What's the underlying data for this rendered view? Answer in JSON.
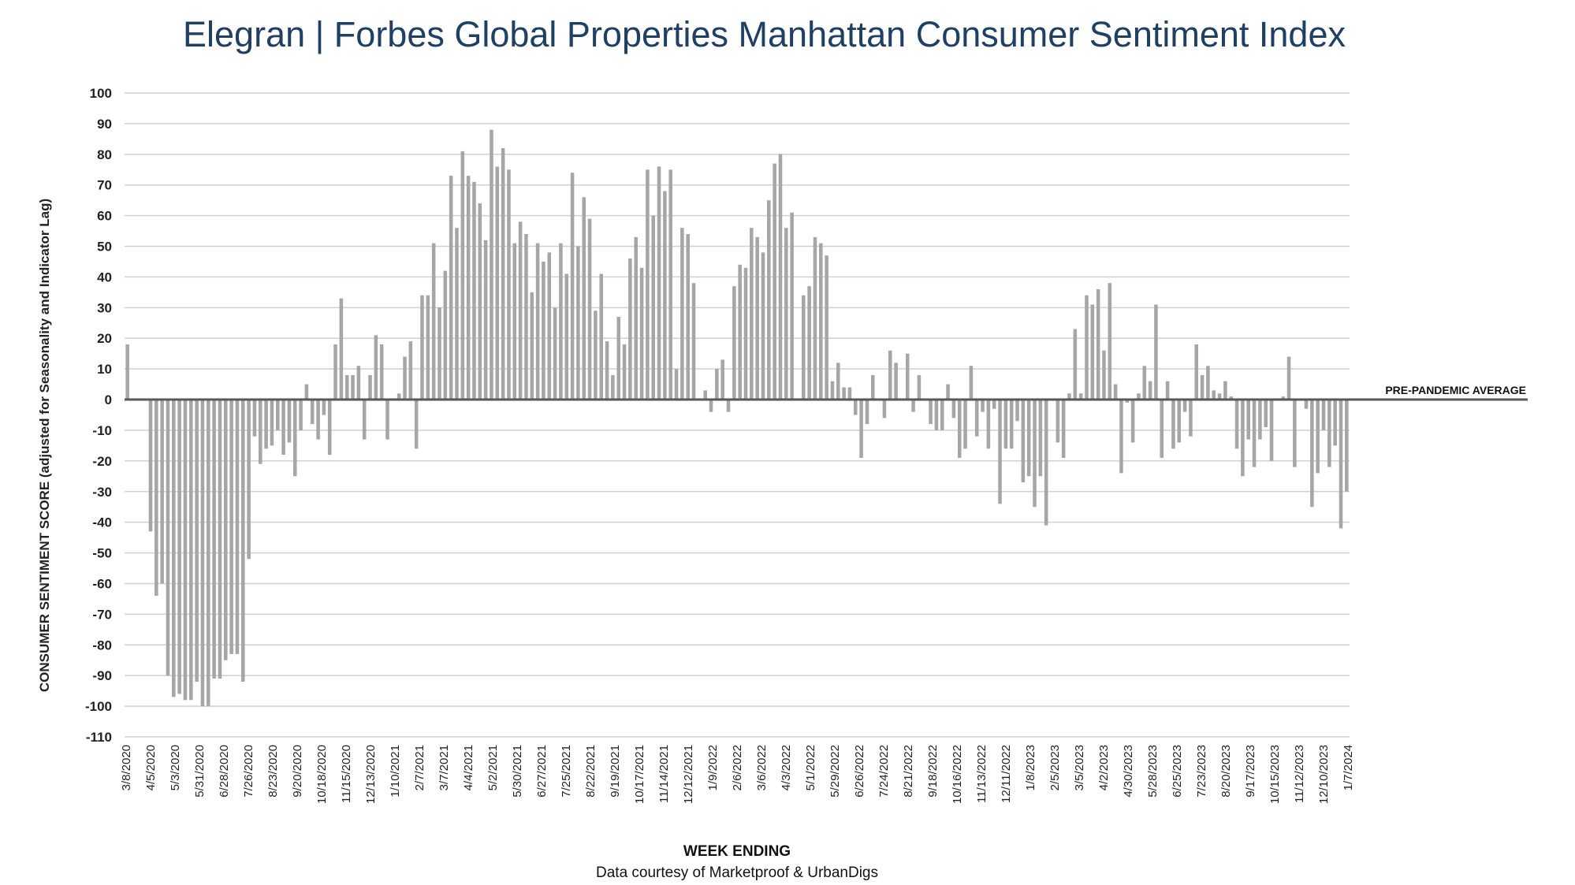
{
  "header": {
    "title_brand": "Elegran | Forbes Global Properties",
    "title_rest": "Manhattan Consumer Sentiment Index"
  },
  "footer": {
    "source": "Data courtesy of Marketproof & UrbanDigs"
  },
  "colors": {
    "title": "#1f3f63",
    "bar": "#a6a6a6",
    "grid": "#d0d0d0",
    "zero_line": "#595959"
  },
  "chart_data": {
    "type": "bar",
    "title": "Elegran | Forbes Global Properties Manhattan Consumer Sentiment Index",
    "xlabel": "WEEK ENDING",
    "ylabel": "CONSUMER SENTIMENT SCORE (adjusted for Seasonality and Indicator Lag)",
    "ylim": [
      -110,
      100
    ],
    "yticks": [
      100,
      90,
      80,
      70,
      60,
      50,
      40,
      30,
      20,
      10,
      0,
      -10,
      -20,
      -30,
      -40,
      -50,
      -60,
      -70,
      -80,
      -90,
      -100,
      -110
    ],
    "grid": true,
    "reference_line": {
      "value": 0,
      "label": "PRE-PANDEMIC AVERAGE"
    },
    "xtick_labels": [
      "3/8/2020",
      "4/5/2020",
      "5/3/2020",
      "5/31/2020",
      "6/28/2020",
      "7/26/2020",
      "8/23/2020",
      "9/20/2020",
      "10/18/2020",
      "11/15/2020",
      "12/13/2020",
      "1/10/2021",
      "2/7/2021",
      "3/7/2021",
      "4/4/2021",
      "5/2/2021",
      "5/30/2021",
      "6/27/2021",
      "7/25/2021",
      "8/22/2021",
      "9/19/2021",
      "10/17/2021",
      "11/14/2021",
      "12/12/2021",
      "1/9/2022",
      "2/6/2022",
      "3/6/2022",
      "4/3/2022",
      "5/1/2022",
      "5/29/2022",
      "6/26/2022",
      "7/24/2022",
      "8/21/2022",
      "9/18/2022",
      "10/16/2022",
      "11/13/2022",
      "12/11/2022",
      "1/8/2023",
      "2/5/2023",
      "3/5/2023",
      "4/2/2023",
      "4/30/2023",
      "5/28/2023",
      "6/25/2023",
      "7/23/2023",
      "8/20/2023",
      "9/17/2023",
      "10/15/2023",
      "11/12/2023",
      "12/10/2023",
      "1/7/2024"
    ],
    "values": [
      18,
      0,
      0,
      0,
      -43,
      -64,
      -60,
      -90,
      -97,
      -96,
      -98,
      -98,
      -92,
      -100,
      -100,
      -91,
      -91,
      -85,
      -83,
      -83,
      -92,
      -52,
      -12,
      -21,
      -16,
      -15,
      -10,
      -18,
      -14,
      -25,
      -10,
      5,
      -8,
      -13,
      -5,
      -18,
      18,
      33,
      8,
      8,
      11,
      -13,
      8,
      21,
      18,
      -13,
      0,
      2,
      14,
      19,
      -16,
      34,
      34,
      51,
      30,
      42,
      73,
      56,
      81,
      73,
      71,
      64,
      52,
      88,
      76,
      82,
      75,
      51,
      58,
      54,
      35,
      51,
      45,
      48,
      30,
      51,
      41,
      74,
      50,
      66,
      59,
      29,
      41,
      19,
      8,
      27,
      18,
      46,
      53,
      43,
      75,
      60,
      76,
      68,
      75,
      10,
      56,
      54,
      38,
      0,
      3,
      -4,
      10,
      13,
      -4,
      37,
      44,
      43,
      56,
      53,
      48,
      65,
      77,
      80,
      56,
      61,
      0,
      34,
      37,
      53,
      51,
      47,
      6,
      12,
      4,
      4,
      -5,
      -19,
      -8,
      8,
      0,
      -6,
      16,
      12,
      0,
      15,
      -4,
      8,
      0,
      -8,
      -10,
      -10,
      5,
      -6,
      -19,
      -16,
      11,
      -12,
      -4,
      -16,
      -3,
      -34,
      -16,
      -16,
      -7,
      -27,
      -25,
      -35,
      -25,
      -41,
      0,
      -14,
      -19,
      2,
      23,
      2,
      34,
      31,
      36,
      16,
      38,
      5,
      -24,
      -1,
      -14,
      2,
      11,
      6,
      31,
      -19,
      6,
      -16,
      -14,
      -4,
      -12,
      18,
      8,
      11,
      3,
      2,
      6,
      1,
      -16,
      -25,
      -13,
      -22,
      -13,
      -9,
      -20,
      0,
      1,
      14,
      -22,
      0,
      -3,
      -35,
      -24,
      -10,
      -22,
      -15,
      -42,
      -30
    ]
  }
}
